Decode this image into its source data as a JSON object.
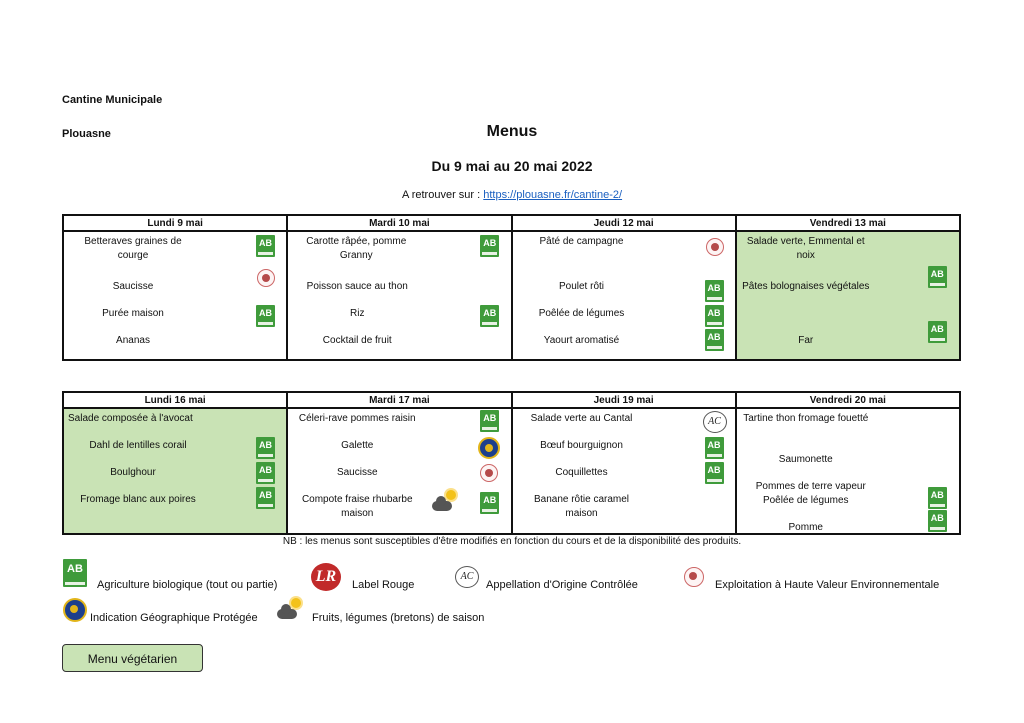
{
  "header": {
    "org": "Cantine Municipale",
    "town": "Plouasne",
    "title": "Menus",
    "period": "Du 9 mai au 20 mai 2022",
    "link_prefix": "A retrouver sur : ",
    "link_text": "https://plouasne.fr/cantine-2/"
  },
  "week1": {
    "days": [
      "Lundi 9 mai",
      "Mardi 10 mai",
      "Jeudi 12 mai",
      "Vendredi 13 mai"
    ],
    "mon": [
      "Betteraves graines de courge",
      "Saucisse",
      "Purée maison",
      "Ananas"
    ],
    "tue": [
      "Carotte râpée, pomme Granny",
      "Poisson sauce au thon",
      "Riz",
      "Cocktail de fruit"
    ],
    "thu": [
      "Pâté de campagne",
      "Poulet rôti",
      "Poêlée de légumes",
      "Yaourt aromatisé"
    ],
    "fri": [
      "Salade verte, Emmental et noix",
      "Pâtes bolognaises végétales",
      "Far"
    ]
  },
  "week2": {
    "days": [
      "Lundi 16 mai",
      "Mardi 17 mai",
      "Jeudi 19 mai",
      "Vendredi 20 mai"
    ],
    "mon": [
      "Salade composée à l'avocat",
      "Dahl de lentilles corail",
      "Boulghour",
      "Fromage blanc aux poires"
    ],
    "tue": [
      "Céleri-rave pommes raisin",
      "Galette",
      "Saucisse",
      "Compote fraise rhubarbe maison"
    ],
    "thu": [
      "Salade verte au Cantal",
      "Bœuf bourguignon",
      "Coquillettes",
      "Banane rôtie caramel maison"
    ],
    "fri": [
      "Tartine thon fromage fouetté",
      "Saumonette",
      "Pommes de terre vapeur",
      "Poêlée de légumes",
      "Pomme"
    ]
  },
  "note": "NB : les menus sont susceptibles d'être modifiés en fonction du cours et de la disponibilité des produits.",
  "legend": {
    "bio": "Agriculture biologique (tout ou partie)",
    "label_rouge": "Label Rouge",
    "aoc": "Appellation d'Origine Contrôlée",
    "hve": "Exploitation à Haute Valeur Environnementale",
    "igp": "Indication Géographique Protégée",
    "season": "Fruits, légumes (bretons) de saison"
  },
  "badges": {
    "ab": "AB",
    "aoc": "AC",
    "label_rouge": "LR"
  },
  "veg_button": "Menu végétarien",
  "colors": {
    "vegetarian": "#c9e3b5",
    "bio": "#3f9b3b",
    "label_rouge": "#c12a2a",
    "link": "#1a5fc0"
  }
}
